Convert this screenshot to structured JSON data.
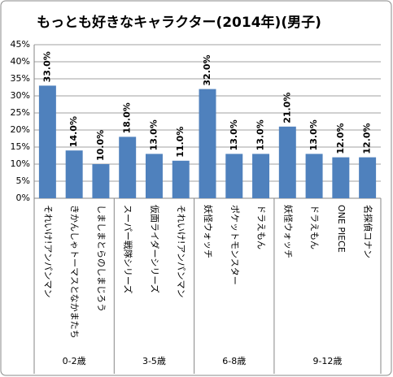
{
  "chart_data": {
    "type": "bar",
    "title": "もっとも好きなキャラクター(2014年)(男子)",
    "categories": [
      "それいけ!アンパンマン",
      "きかんしゃトーマスとなかまたち",
      "しましまとらのしまじろう",
      "スーパー戦隊シリーズ",
      "仮面ライダーシリーズ",
      "それいけ!アンパンマン",
      "妖怪ウォッチ",
      "ポケットモンスター",
      "ドラえもん",
      "妖怪ウォッチ",
      "ドラえもん",
      "ONE PIECE",
      "名探偵コナン"
    ],
    "category_groups": [
      "0-2歳",
      "0-2歳",
      "0-2歳",
      "3-5歳",
      "3-5歳",
      "3-5歳",
      "6-8歳",
      "6-8歳",
      "6-8歳",
      "9-12歳",
      "9-12歳",
      "9-12歳",
      "9-12歳"
    ],
    "values": [
      33,
      14,
      10,
      18,
      13,
      11,
      32,
      13,
      13,
      21,
      13,
      12,
      12
    ],
    "value_labels": [
      "33.0%",
      "14.0%",
      "10.0%",
      "18.0%",
      "13.0%",
      "11.0%",
      "32.0%",
      "13.0%",
      "13.0%",
      "21.0%",
      "13.0%",
      "12.0%",
      "12.0%"
    ],
    "color": "#4f81bd",
    "ylim": [
      0,
      45
    ],
    "yticks": [
      {
        "value": 0,
        "label": "0%"
      },
      {
        "value": 5,
        "label": "5%"
      },
      {
        "value": 10,
        "label": "10%"
      },
      {
        "value": 15,
        "label": "15%"
      },
      {
        "value": 20,
        "label": "20%"
      },
      {
        "value": 25,
        "label": "25%"
      },
      {
        "value": 30,
        "label": "30%"
      },
      {
        "value": 35,
        "label": "35%"
      },
      {
        "value": 40,
        "label": "40%"
      },
      {
        "value": 45,
        "label": "45%"
      }
    ],
    "grid": true
  }
}
